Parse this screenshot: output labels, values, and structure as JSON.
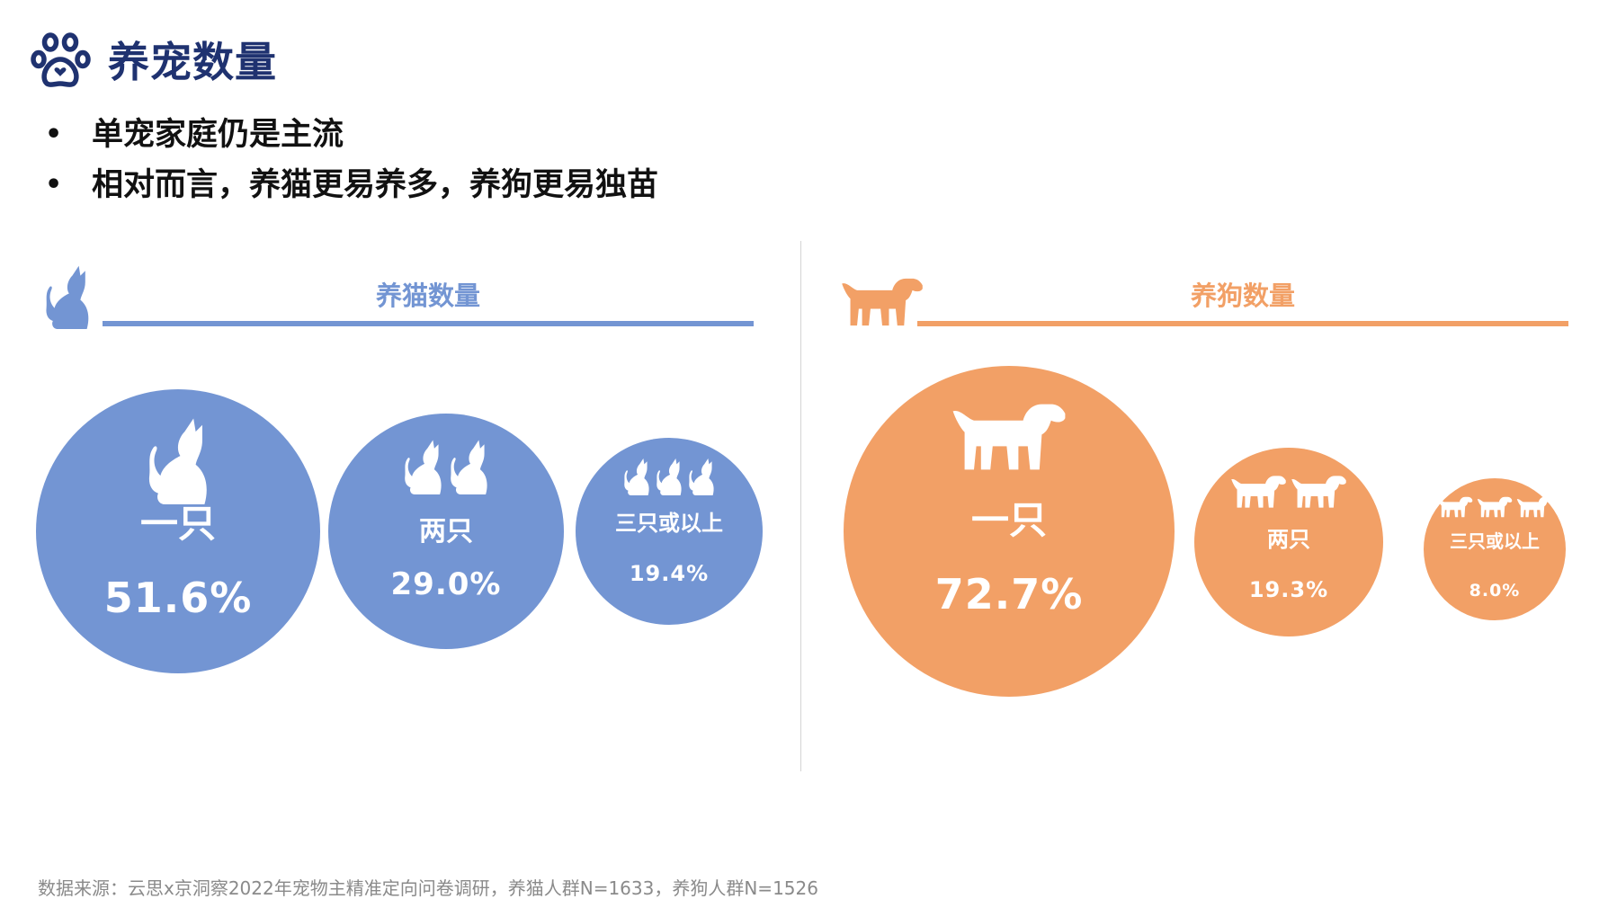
{
  "page": {
    "title": "养宠数量",
    "bullets": [
      "单宠家庭仍是主流",
      "相对而言，养猫更易养多，养狗更易独苗"
    ],
    "bullet_mark": "•",
    "source": "数据来源：云思x京洞察2022年宠物主精准定向问卷调研，养猫人群N=1633，养狗人群N=1526"
  },
  "icons": {
    "title": "paw-icon",
    "cat": "cat-icon",
    "dog": "dog-icon"
  },
  "colors": {
    "title": "#1f3270",
    "cat": "#7395d3",
    "dog": "#f2a066",
    "text": "#111111",
    "source": "#8a8a8a"
  },
  "chart_data": [
    {
      "type": "bubble",
      "title": "养猫数量",
      "categories": [
        "一只",
        "两只",
        "三只或以上"
      ],
      "values": [
        51.6,
        29.0,
        19.4
      ],
      "value_labels": [
        "51.6%",
        "29.0%",
        "19.4%"
      ],
      "unit": "%",
      "color": "#7395d3"
    },
    {
      "type": "bubble",
      "title": "养狗数量",
      "categories": [
        "一只",
        "两只",
        "三只或以上"
      ],
      "values": [
        72.7,
        19.3,
        8.0
      ],
      "value_labels": [
        "72.7%",
        "19.3%",
        "8.0%"
      ],
      "unit": "%",
      "color": "#f2a066"
    }
  ]
}
